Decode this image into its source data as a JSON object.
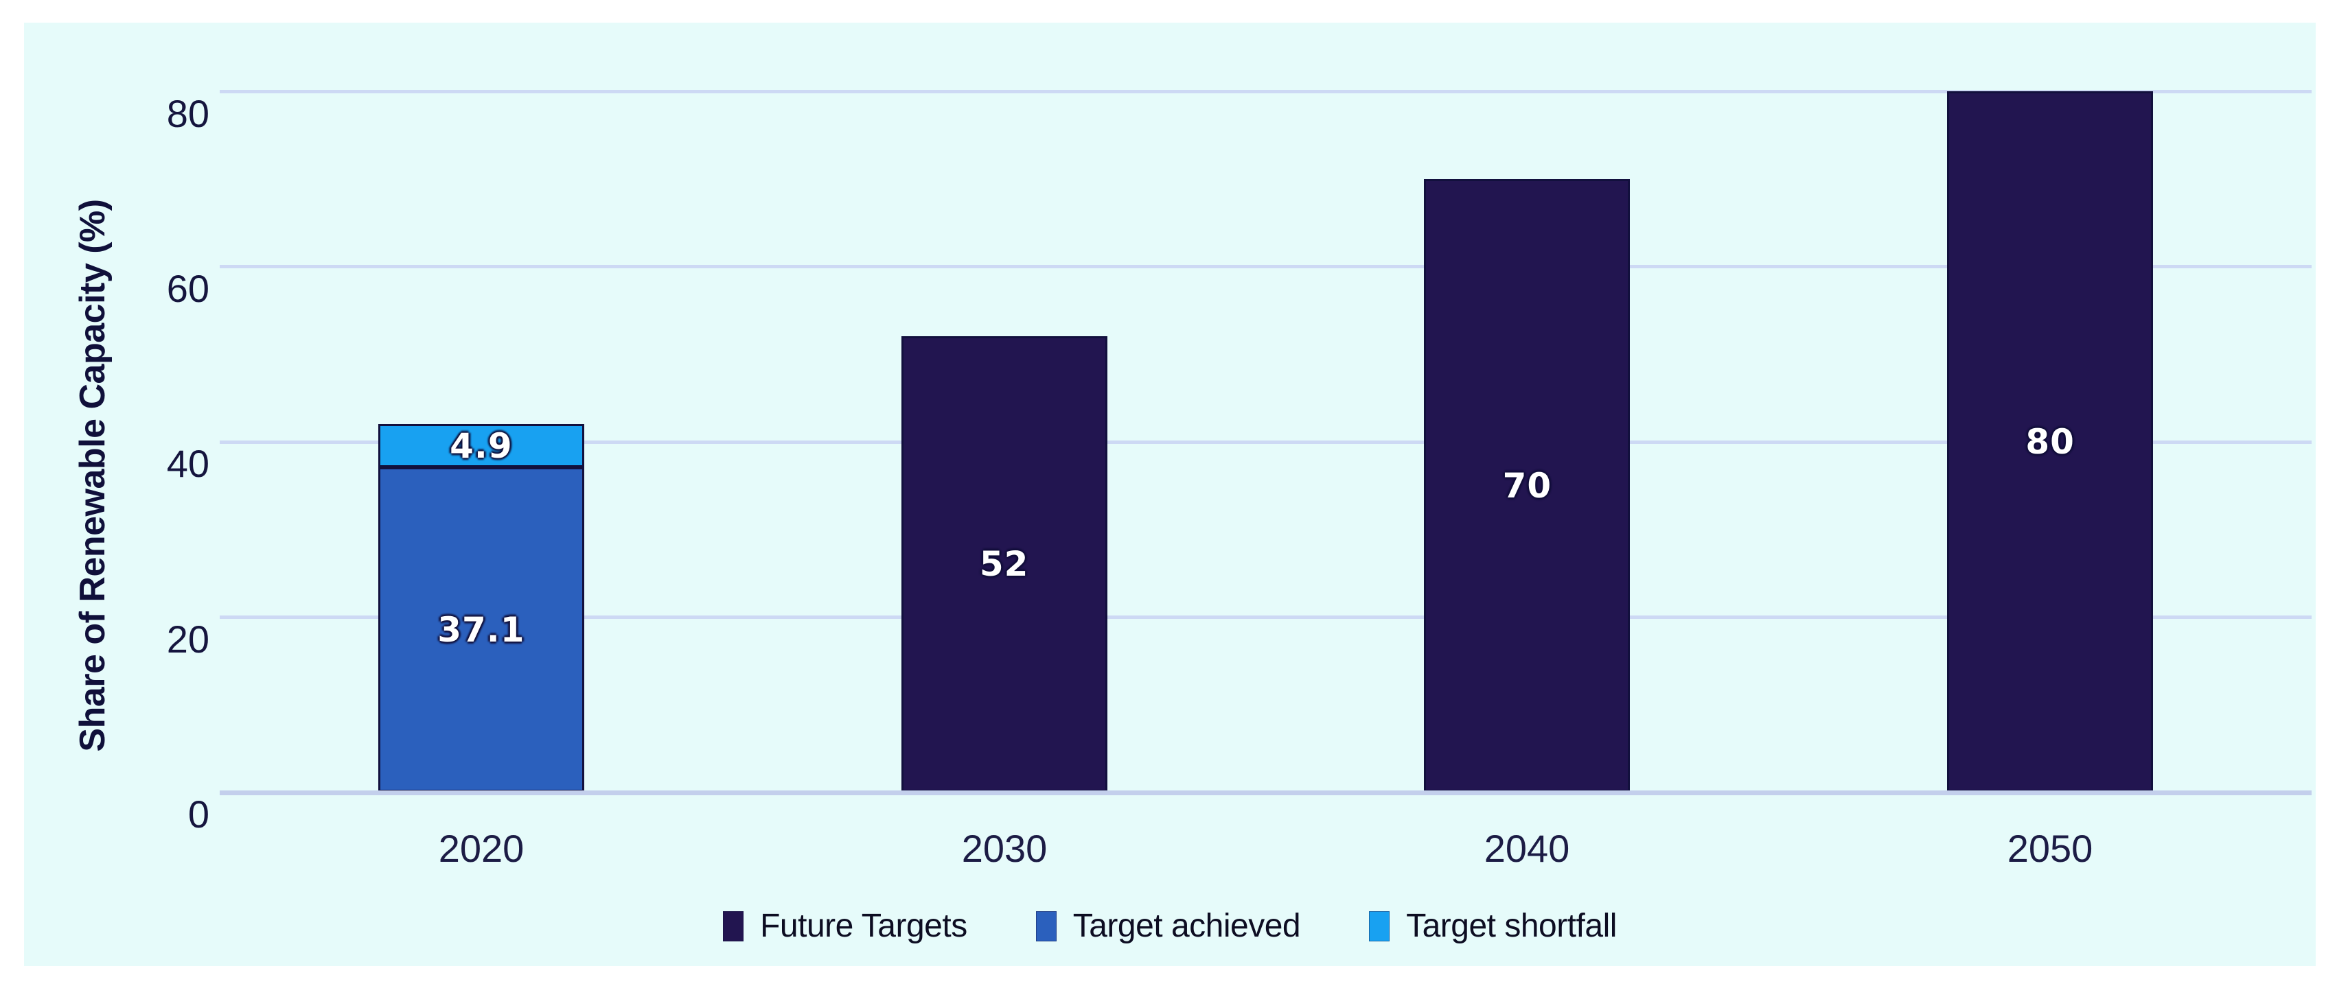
{
  "chart_data": {
    "type": "bar",
    "stacked": true,
    "title": "",
    "xlabel": "",
    "ylabel": "Share of Renewable Capacity (%)",
    "categories": [
      "2020",
      "2030",
      "2040",
      "2050"
    ],
    "series": [
      {
        "name": "Future Targets",
        "color": "#221550",
        "values": [
          null,
          52,
          70,
          80
        ]
      },
      {
        "name": "Target achieved",
        "color": "#2b60bd",
        "values": [
          37.1,
          null,
          null,
          null
        ]
      },
      {
        "name": "Target shortfall",
        "color": "#18a1f1",
        "values": [
          4.9,
          null,
          null,
          null
        ]
      }
    ],
    "ylim": [
      0,
      80
    ],
    "yticks": [
      0,
      20,
      40,
      60,
      80
    ],
    "grid": true,
    "legend_position": "bottom",
    "panel_background": "#e6fbfa",
    "gridline_color": "#cdd9f4",
    "data_label_color": "#ffffff"
  }
}
